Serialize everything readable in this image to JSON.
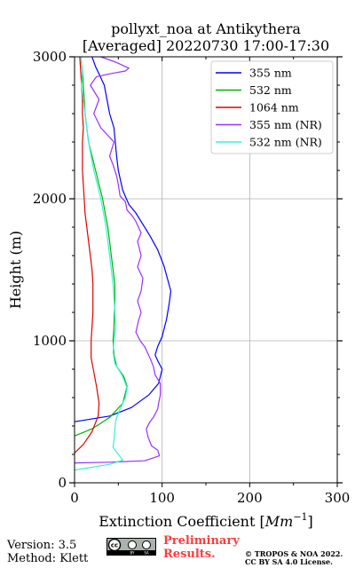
{
  "colors": {
    "series": [
      "#0000ff",
      "#00b400",
      "#e00000",
      "#9b30ff",
      "#37f2d5"
    ],
    "prelim": "#ff3b3b"
  },
  "chart_data": {
    "type": "line",
    "title_line1": "pollyxt_noa at Antikythera",
    "title_line2": "[Averaged] 20220730 17:00-17:30",
    "xlabel": "Extinction Coefficient [$Mm^{-1}$]",
    "xlabel_text": "Extinction Coefficient [",
    "xlabel_unit": "Mm",
    "xlabel_exp": "−1",
    "xlabel_close": "]",
    "ylabel": "Height (m)",
    "xlim": [
      0,
      300
    ],
    "ylim": [
      0,
      3000
    ],
    "xticks": [
      "0",
      "100",
      "200",
      "300"
    ],
    "yticks": [
      "0",
      "1000",
      "2000",
      "3000"
    ],
    "grid": true,
    "legend_position": "top-right",
    "series": [
      {
        "name": "355 nm",
        "color": "#0000ff",
        "points": [
          [
            0,
            430
          ],
          [
            40,
            470
          ],
          [
            65,
            530
          ],
          [
            85,
            620
          ],
          [
            96,
            700
          ],
          [
            100,
            800
          ],
          [
            95,
            860
          ],
          [
            92,
            900
          ],
          [
            95,
            960
          ],
          [
            100,
            1030
          ],
          [
            105,
            1150
          ],
          [
            108,
            1260
          ],
          [
            110,
            1350
          ],
          [
            106,
            1440
          ],
          [
            102,
            1530
          ],
          [
            95,
            1640
          ],
          [
            86,
            1740
          ],
          [
            78,
            1820
          ],
          [
            70,
            1900
          ],
          [
            62,
            1960
          ],
          [
            55,
            2060
          ],
          [
            50,
            2200
          ],
          [
            48,
            2300
          ],
          [
            45,
            2500
          ],
          [
            40,
            2600
          ],
          [
            37,
            2700
          ],
          [
            34,
            2800
          ],
          [
            28,
            2880
          ],
          [
            24,
            2930
          ],
          [
            20,
            3000
          ]
        ]
      },
      {
        "name": "532 nm",
        "color": "#00b400",
        "points": [
          [
            0,
            330
          ],
          [
            20,
            380
          ],
          [
            40,
            460
          ],
          [
            55,
            560
          ],
          [
            60,
            680
          ],
          [
            56,
            750
          ],
          [
            48,
            820
          ],
          [
            45,
            900
          ],
          [
            44,
            1000
          ],
          [
            45,
            1100
          ],
          [
            46,
            1300
          ],
          [
            46,
            1400
          ],
          [
            44,
            1500
          ],
          [
            42,
            1600
          ],
          [
            40,
            1700
          ],
          [
            38,
            1800
          ],
          [
            35,
            1900
          ],
          [
            32,
            2000
          ],
          [
            28,
            2100
          ],
          [
            24,
            2200
          ],
          [
            20,
            2300
          ],
          [
            16,
            2400
          ],
          [
            14,
            2500
          ],
          [
            12,
            2600
          ],
          [
            11,
            2700
          ],
          [
            10,
            2800
          ],
          [
            9,
            2900
          ],
          [
            7,
            3000
          ]
        ]
      },
      {
        "name": "1064 nm",
        "color": "#e00000",
        "points": [
          [
            0,
            210
          ],
          [
            10,
            270
          ],
          [
            20,
            360
          ],
          [
            27,
            470
          ],
          [
            28,
            560
          ],
          [
            25,
            680
          ],
          [
            22,
            780
          ],
          [
            19,
            880
          ],
          [
            19,
            1000
          ],
          [
            20,
            1100
          ],
          [
            21,
            1200
          ],
          [
            21,
            1400
          ],
          [
            20,
            1500
          ],
          [
            18,
            1600
          ],
          [
            16,
            1700
          ],
          [
            14,
            1800
          ],
          [
            12,
            1900
          ],
          [
            11,
            2000
          ],
          [
            10,
            2100
          ],
          [
            9,
            2200
          ],
          [
            9,
            2400
          ],
          [
            10,
            2500
          ],
          [
            9,
            2600
          ],
          [
            9,
            2700
          ],
          [
            8,
            2800
          ],
          [
            7,
            2900
          ],
          [
            6,
            3000
          ]
        ]
      },
      {
        "name": "355 nm (NR)",
        "color": "#9b30ff",
        "points": [
          [
            0,
            140
          ],
          [
            40,
            145
          ],
          [
            80,
            155
          ],
          [
            97,
            190
          ],
          [
            95,
            230
          ],
          [
            88,
            260
          ],
          [
            84,
            320
          ],
          [
            82,
            380
          ],
          [
            86,
            430
          ],
          [
            90,
            460
          ],
          [
            95,
            520
          ],
          [
            96,
            560
          ],
          [
            98,
            620
          ],
          [
            98,
            700
          ],
          [
            92,
            760
          ],
          [
            90,
            820
          ],
          [
            86,
            880
          ],
          [
            80,
            960
          ],
          [
            75,
            1000
          ],
          [
            70,
            1060
          ],
          [
            73,
            1140
          ],
          [
            76,
            1200
          ],
          [
            72,
            1280
          ],
          [
            76,
            1350
          ],
          [
            78,
            1440
          ],
          [
            72,
            1520
          ],
          [
            76,
            1600
          ],
          [
            72,
            1700
          ],
          [
            76,
            1760
          ],
          [
            70,
            1840
          ],
          [
            66,
            1880
          ],
          [
            60,
            1920
          ],
          [
            58,
            1980
          ],
          [
            52,
            2020
          ],
          [
            50,
            2100
          ],
          [
            48,
            2160
          ],
          [
            44,
            2240
          ],
          [
            40,
            2300
          ],
          [
            45,
            2400
          ],
          [
            30,
            2500
          ],
          [
            22,
            2600
          ],
          [
            28,
            2700
          ],
          [
            18,
            2800
          ],
          [
            25,
            2860
          ],
          [
            40,
            2880
          ],
          [
            58,
            2900
          ],
          [
            62,
            2920
          ],
          [
            48,
            2960
          ],
          [
            30,
            3000
          ]
        ]
      },
      {
        "name": "532 nm (NR)",
        "color": "#37f2d5",
        "points": [
          [
            0,
            90
          ],
          [
            40,
            130
          ],
          [
            55,
            160
          ],
          [
            50,
            200
          ],
          [
            44,
            250
          ],
          [
            45,
            300
          ],
          [
            46,
            380
          ],
          [
            47,
            440
          ],
          [
            52,
            520
          ],
          [
            58,
            600
          ],
          [
            60,
            670
          ],
          [
            54,
            760
          ],
          [
            46,
            840
          ],
          [
            44,
            920
          ],
          [
            45,
            1000
          ],
          [
            47,
            1100
          ],
          [
            46,
            1200
          ],
          [
            45,
            1300
          ],
          [
            44,
            1400
          ],
          [
            42,
            1500
          ],
          [
            40,
            1600
          ],
          [
            38,
            1700
          ],
          [
            36,
            1800
          ],
          [
            33,
            1900
          ],
          [
            30,
            2000
          ],
          [
            26,
            2100
          ],
          [
            22,
            2200
          ],
          [
            19,
            2300
          ],
          [
            16,
            2400
          ],
          [
            14,
            2500
          ],
          [
            12,
            2600
          ],
          [
            10,
            2700
          ],
          [
            8,
            2800
          ],
          [
            9,
            2900
          ],
          [
            7,
            3000
          ]
        ]
      }
    ]
  },
  "footer": {
    "version": "Version: 3.5",
    "method": "Method: Klett",
    "prelim_line1": "Preliminary",
    "prelim_line2": "Results.",
    "copyright_line1": "© TROPOS & NOA 2022.",
    "copyright_line2": "CC BY SA 4.0 License.",
    "cc_logo_text": "cc",
    "cc_by": "BY",
    "cc_sa": "SA"
  }
}
